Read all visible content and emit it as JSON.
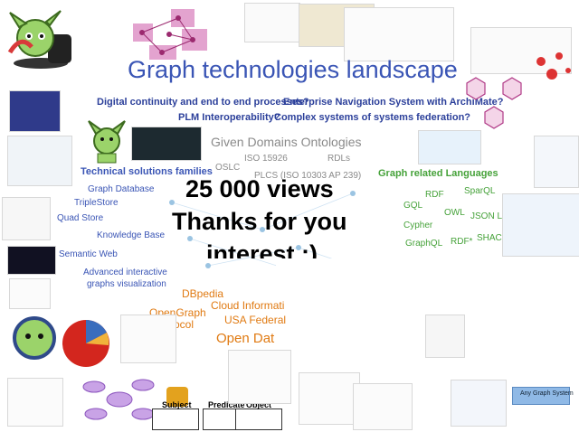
{
  "title": "Graph technologies landscape",
  "questions": {
    "q1": "Digital continuity and end to end processes?",
    "q2": "Enterprise Navigation System with ArchiMate?",
    "q3": "PLM Interoperability?",
    "q4": "Complex systems of systems federation?"
  },
  "ontologies": {
    "heading": "Given Domains Ontologies",
    "iso": "ISO 15926",
    "rdls": "RDLs",
    "oslc": "OSLC",
    "plcs": "PLCS (ISO 10303 AP 239)"
  },
  "technical": {
    "heading": "Technical solutions families",
    "items": [
      "Graph Database",
      "TripleStore",
      "Quad Store",
      "Knowledge Base",
      "Semantic Web",
      "Advanced interactive",
      "graphs visualization"
    ]
  },
  "languages": {
    "heading": "Graph related Languages",
    "items": [
      "RDF",
      "SparQL",
      "GQL",
      "OWL",
      "JSON LD",
      "Cypher",
      "SHACL",
      "GraphQL",
      "RDF*"
    ]
  },
  "open_data": {
    "dbpedia": "DBpedia",
    "cloud": "Cloud Informati",
    "opengraph_1": "OpenGraph",
    "opengraph_2": "Protocol",
    "usa": "USA Federal",
    "open_dat": "Open Dat"
  },
  "overlay": {
    "line1": "25 000 views",
    "line2": "Thanks for you",
    "line3": "interest :)"
  },
  "rdf_triple": {
    "subject": "Subject",
    "predicate": "Predicate",
    "object": "Object"
  },
  "graph_system_label": "Any Graph System",
  "colors": {
    "title_blue": "#3a55b5",
    "heading_green": "#46a23a",
    "open_data_orange": "#e07a12",
    "ontology_gray": "#8a8a8a"
  }
}
